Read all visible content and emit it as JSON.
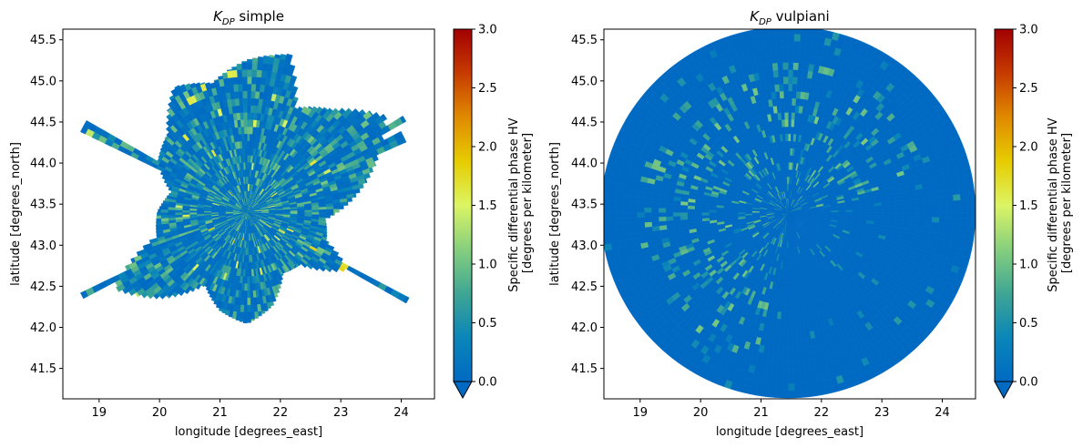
{
  "chart_data": [
    {
      "type": "heatmap",
      "title_symbol": "K",
      "title_sub": "DP",
      "title_rest": " simple",
      "xlabel": "longitude [degrees_east]",
      "ylabel": "latitude [degrees_north]",
      "xlim": [
        18.4,
        24.55
      ],
      "ylim": [
        41.13,
        45.63
      ],
      "xticks": [
        19,
        20,
        21,
        22,
        23,
        24
      ],
      "yticks": [
        41.5,
        42.0,
        42.5,
        43.0,
        43.5,
        44.0,
        44.5,
        45.0,
        45.5
      ],
      "radar_center": [
        21.45,
        43.4
      ],
      "coverage": "partial",
      "colorbar": {
        "label_line1": "Specific differential phase HV",
        "label_line2": "[degrees per kilometer]",
        "range": [
          0.0,
          3.0
        ],
        "ticks": [
          0.0,
          0.5,
          1.0,
          1.5,
          2.0,
          2.5,
          3.0
        ],
        "extend": "min"
      }
    },
    {
      "type": "heatmap",
      "title_symbol": "K",
      "title_sub": "DP",
      "title_rest": " vulpiani",
      "xlabel": "longitude [degrees_east]",
      "ylabel": "latitude [degrees_north]",
      "xlim": [
        18.4,
        24.55
      ],
      "ylim": [
        41.13,
        45.63
      ],
      "xticks": [
        19,
        20,
        21,
        22,
        23,
        24
      ],
      "yticks": [
        41.5,
        42.0,
        42.5,
        43.0,
        43.5,
        44.0,
        44.5,
        45.0,
        45.5
      ],
      "radar_center": [
        21.45,
        43.4
      ],
      "coverage": "full-circle",
      "colorbar": {
        "label_line1": "Specific differential phase HV",
        "label_line2": "[degrees per kilometer]",
        "range": [
          0.0,
          3.0
        ],
        "ticks": [
          0.0,
          0.5,
          1.0,
          1.5,
          2.0,
          2.5,
          3.0
        ],
        "extend": "min"
      }
    }
  ],
  "colormap": [
    "#006ac3",
    "#0a86b9",
    "#3fa693",
    "#86cf7e",
    "#dcf564",
    "#e6cc00",
    "#e08a00",
    "#c63b00",
    "#a20000"
  ]
}
